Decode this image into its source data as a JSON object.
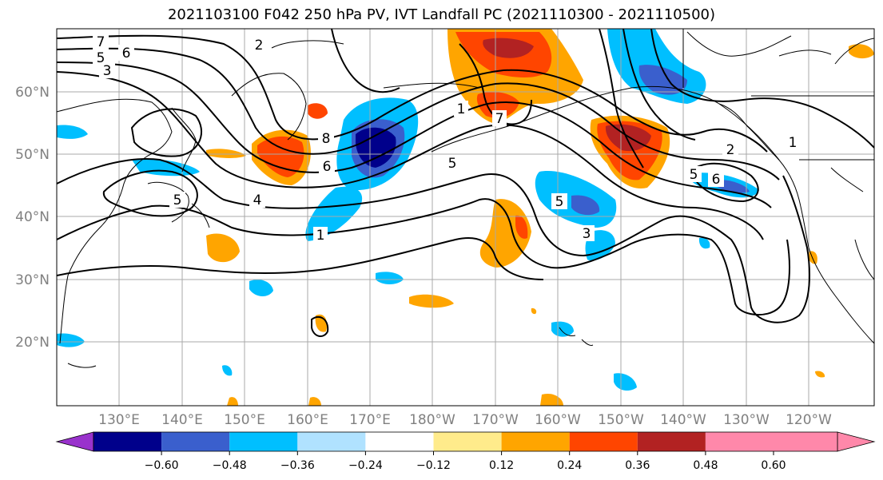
{
  "title": "2021103100 F042 250 hPa PV, IVT Landfall PC (2021110300 - 2021110500)",
  "lat_labels": [
    "60°N",
    "50°N",
    "40°N",
    "30°N",
    "20°N"
  ],
  "lon_labels": [
    "130°E",
    "140°E",
    "150°E",
    "160°E",
    "170°E",
    "180°W",
    "170°W",
    "160°W",
    "150°W",
    "140°W",
    "130°W",
    "120°W"
  ],
  "colorbar": {
    "ticks": [
      "−0.60",
      "−0.48",
      "−0.36",
      "−0.24",
      "−0.12",
      "0.12",
      "0.24",
      "0.36",
      "0.48",
      "0.60"
    ],
    "colors": [
      "#9932cc",
      "#00008b",
      "#3a5fcd",
      "#00bfff",
      "#b0e2ff",
      "#ffffff",
      "#ffeb8b",
      "#ffa500",
      "#ff4500",
      "#b22222",
      "#ff88aa"
    ]
  },
  "contour_labels": [
    "7",
    "6",
    "5",
    "3",
    "8",
    "6",
    "4",
    "5",
    "5",
    "1",
    "7",
    "5",
    "3",
    "2",
    "1",
    "6",
    "5",
    "2",
    "1"
  ],
  "fill_colors": {
    "dark_blue": "#00008b",
    "blue": "#3a5fcd",
    "cyan": "#00bfff",
    "orange": "#ffa500",
    "red_orange": "#ff4500",
    "dark_red": "#b22222",
    "light_yellow": "#ffeb8b"
  }
}
